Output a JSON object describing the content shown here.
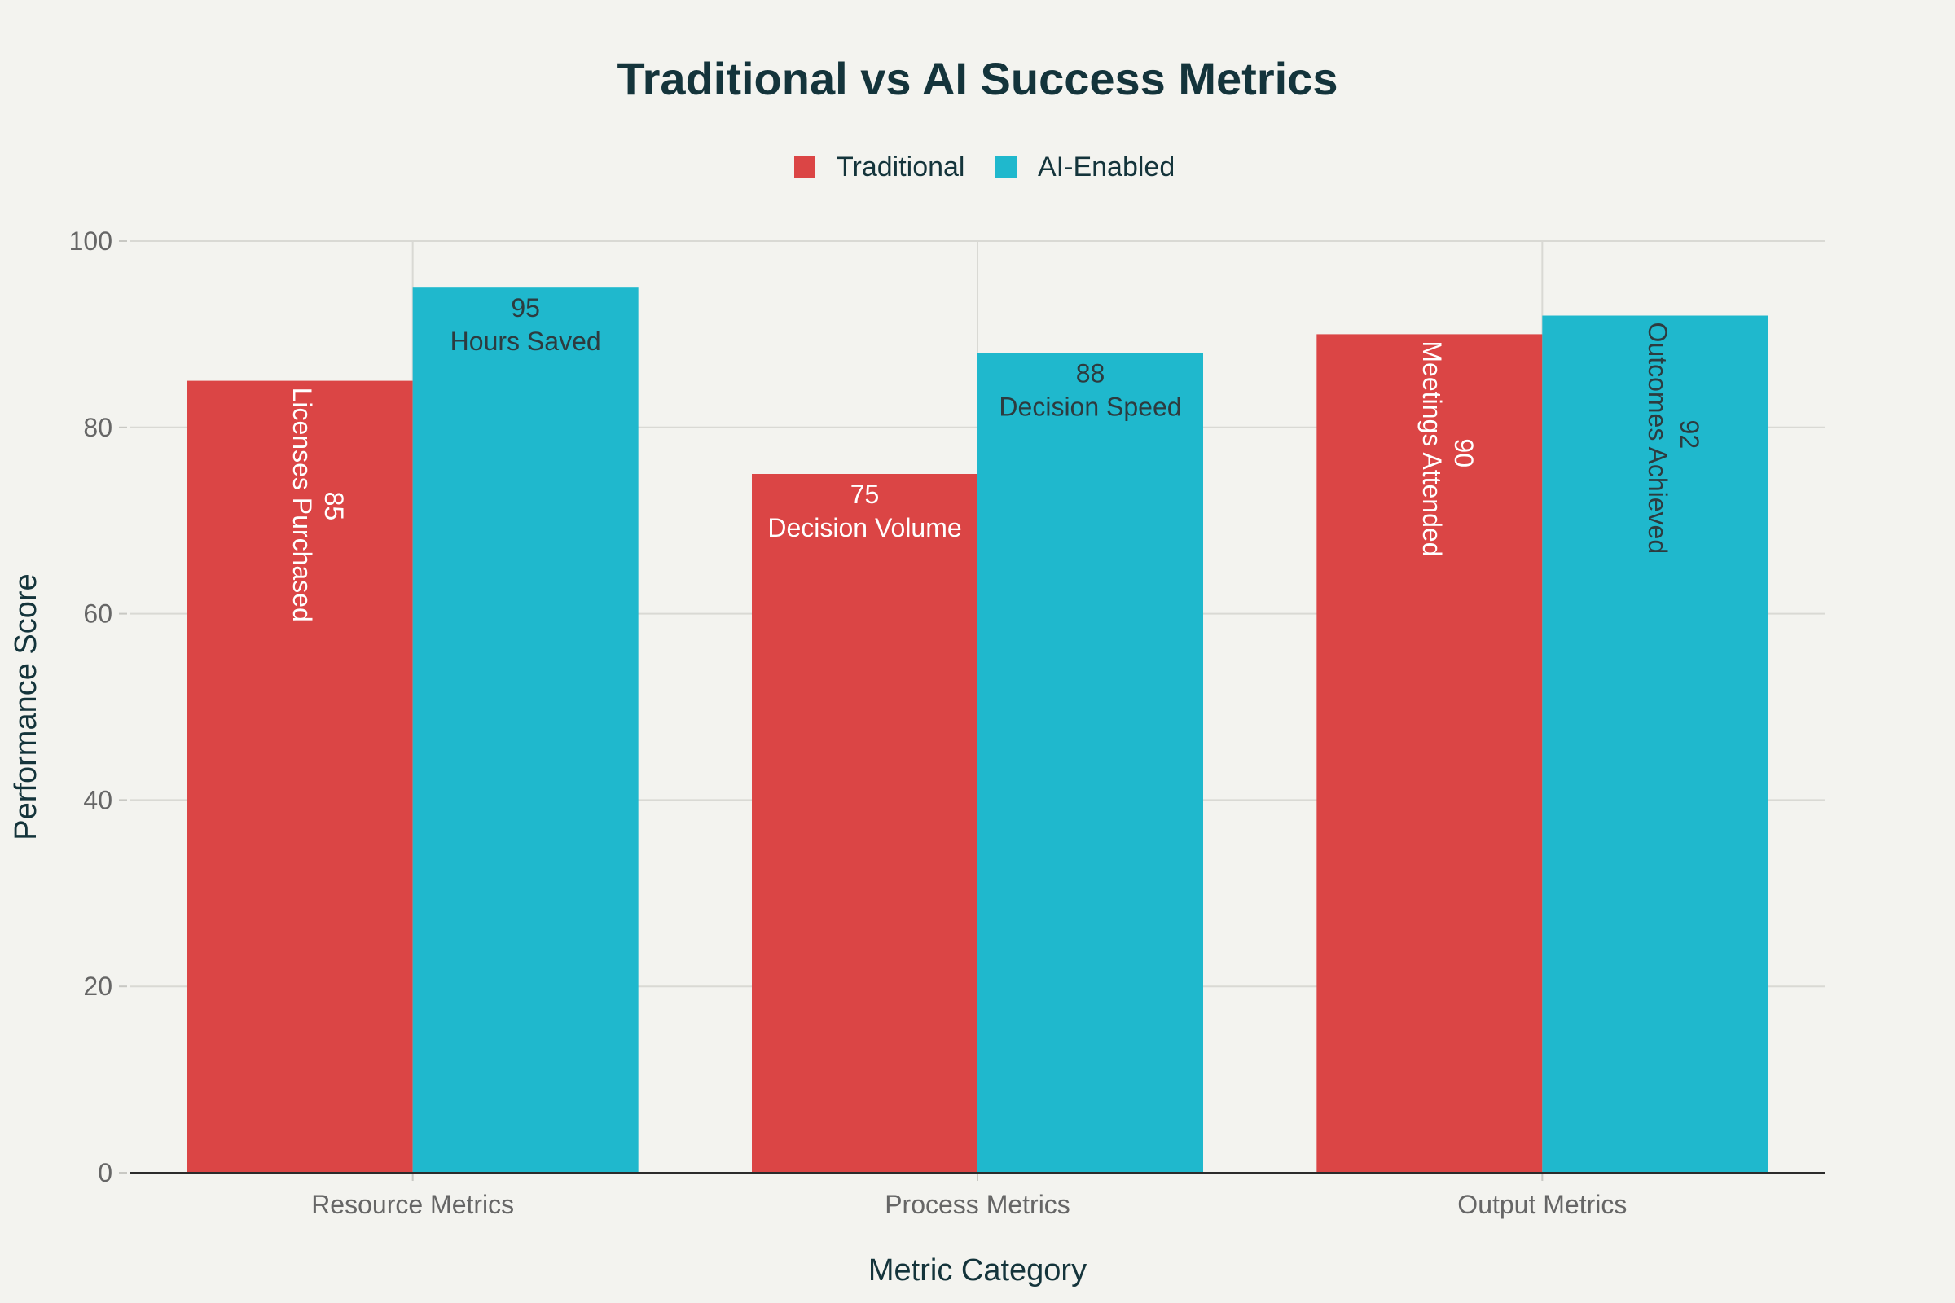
{
  "chart_data": {
    "type": "bar",
    "title": "Traditional vs AI Success Metrics",
    "xlabel": "Metric Category",
    "ylabel": "Performance Score",
    "ylim": [
      0,
      100
    ],
    "yticks": [
      0,
      20,
      40,
      60,
      80,
      100
    ],
    "grid": true,
    "legend_position": "top-center",
    "categories": [
      "Resource Metrics",
      "Process Metrics",
      "Output Metrics"
    ],
    "series": [
      {
        "name": "Traditional",
        "color": "#db4545",
        "label_color": "#ffffff",
        "values": [
          85,
          75,
          90
        ],
        "labels": [
          "Licenses Purchased",
          "Decision Volume",
          "Meetings Attended"
        ],
        "label_orientation": [
          "vertical",
          "horizontal",
          "vertical"
        ]
      },
      {
        "name": "AI-Enabled",
        "color": "#1fb8cd",
        "label_color": "#2d3b3f",
        "values": [
          95,
          88,
          92
        ],
        "labels": [
          "Hours Saved",
          "Decision Speed",
          "Outcomes Achieved"
        ],
        "label_orientation": [
          "horizontal",
          "horizontal",
          "vertical"
        ]
      }
    ]
  }
}
